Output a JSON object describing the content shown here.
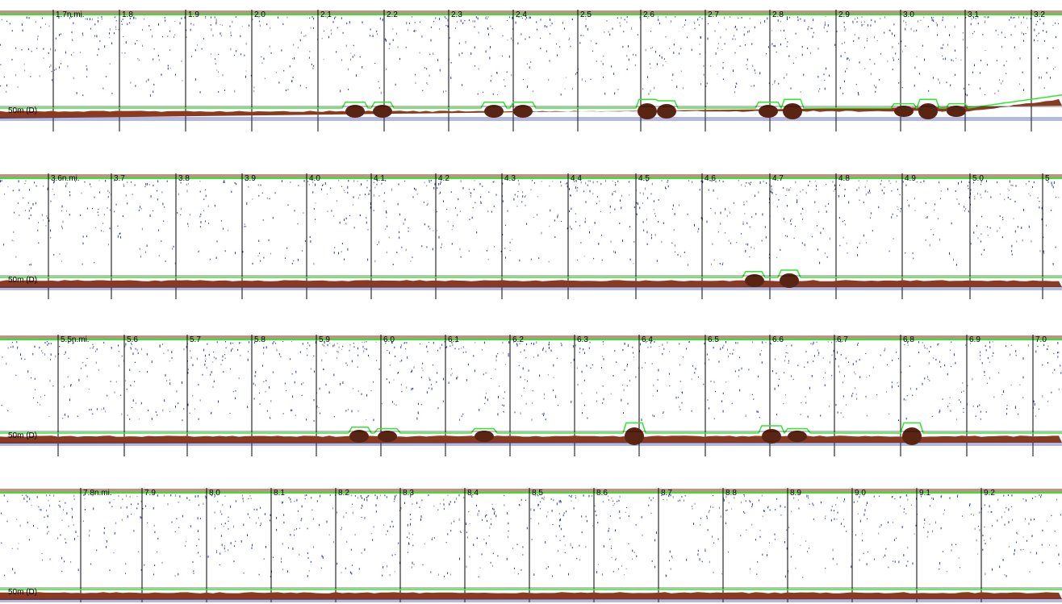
{
  "colors": {
    "background": "#ffffff",
    "bottom_line": "#2ee82e",
    "seabed": "#8b3a1f",
    "seabed_dark": "#5a2412",
    "noise_blue": "#2b3a9e",
    "noise_gray": "#8a8a8a",
    "gridline": "#000000",
    "scale_line": "#000000"
  },
  "panels": [
    {
      "depth_label": "50m (D)",
      "markers": [
        "1.7n.mi.",
        "1.8",
        "1.9",
        "2.0",
        "2.1",
        "2.2",
        "2.3",
        "2.4",
        "2.5",
        "2.6",
        "2.7",
        "2.8",
        "2.9",
        "3.0",
        "3.1",
        "3.2"
      ]
    },
    {
      "depth_label": "50m (D)",
      "markers": [
        "3.6n.mi.",
        "3.7",
        "3.8",
        "3.9",
        "4.0",
        "4.1",
        "4.2",
        "4.3",
        "4.4",
        "4.5",
        "4.6",
        "4.7",
        "4.8",
        "4.9",
        "5.0",
        "5"
      ]
    },
    {
      "depth_label": "50m (D)",
      "markers": [
        "5.5n.mi.",
        "5.6",
        "5.7",
        "5.8",
        "5.9",
        "6.0",
        "6.1",
        "6.2",
        "6.3",
        "6.4",
        "6.5",
        "6.6",
        "6.7",
        "6.8",
        "6.9",
        "7.0"
      ]
    },
    {
      "depth_label": "50m (D)",
      "markers": [
        "7.8n.mi.",
        "7.9",
        "8.0",
        "8.1",
        "8.2",
        "8.3",
        "8.4",
        "8.5",
        "8.6",
        "8.7",
        "8.8",
        "8.9",
        "9.0",
        "9.1",
        "9.2"
      ]
    }
  ]
}
